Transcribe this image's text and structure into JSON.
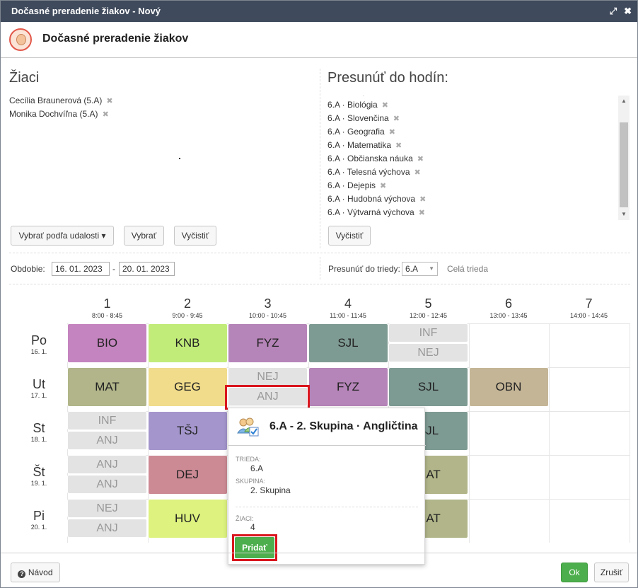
{
  "window": {
    "title": "Dočasné preradenie žiakov - Nový",
    "maximize_icon": "maximize-icon",
    "close_icon": "close-icon"
  },
  "header": {
    "title": "Dočasné preradenie žiakov"
  },
  "left": {
    "title": "Žiaci",
    "students": [
      "Cecília Braunerová (5.A)",
      "Monika Dochvíľna (5.A)"
    ],
    "buttons": {
      "by_event": "Vybrať podľa udalosti ▾",
      "select": "Vybrať",
      "clear": "Vyčistiť"
    }
  },
  "right": {
    "title": "Presunúť do hodín:",
    "lessons": [
      "6.A · Biológia",
      "6.A · Slovenčina",
      "6.A · Geografia",
      "6.A · Matematika",
      "6.A · Občianska náuka",
      "6.A · Telesná výchova",
      "6.A · Dejepis",
      "6.A · Hudobná výchova",
      "6.A · Výtvarná výchova"
    ],
    "clear": "Vyčistiť"
  },
  "filters": {
    "period_label": "Obdobie:",
    "date_from": "16. 01. 2023",
    "date_sep": "-",
    "date_to": "20. 01. 2023",
    "move_class_label": "Presunúť do triedy:",
    "class_value": "6.A",
    "whole_class": "Celá trieda"
  },
  "timetable": {
    "periods": [
      {
        "num": "1",
        "time": "8:00 - 8:45"
      },
      {
        "num": "2",
        "time": "9:00 - 9:45"
      },
      {
        "num": "3",
        "time": "10:00 - 10:45"
      },
      {
        "num": "4",
        "time": "11:00 - 11:45"
      },
      {
        "num": "5",
        "time": "12:00 - 12:45"
      },
      {
        "num": "6",
        "time": "13:00 - 13:45"
      },
      {
        "num": "7",
        "time": "14:00 - 14:45"
      }
    ],
    "days": [
      {
        "day": "Po",
        "date": "16. 1."
      },
      {
        "day": "Ut",
        "date": "17. 1."
      },
      {
        "day": "St",
        "date": "18. 1."
      },
      {
        "day": "Št",
        "date": "19. 1."
      },
      {
        "day": "Pi",
        "date": "20. 1."
      }
    ],
    "colors": {
      "BIO": "#c484bf",
      "KNB": "#c2ec7a",
      "FYZ": "#b584b8",
      "SJL": "#7e9b93",
      "MAT": "#b1b589",
      "GEG": "#f0dc8b",
      "OBN": "#c4b596",
      "TSJ": "#a496cc",
      "DEJ": "#cc8a95",
      "HUV": "#ddf27f",
      "inactive": "#e3e3e3"
    },
    "lessons": [
      {
        "d": 0,
        "p": 0,
        "label": "BIO"
      },
      {
        "d": 0,
        "p": 1,
        "label": "KNB"
      },
      {
        "d": 0,
        "p": 2,
        "label": "FYZ"
      },
      {
        "d": 0,
        "p": 3,
        "label": "SJL"
      },
      {
        "d": 0,
        "p": 4,
        "half": "top",
        "label": "INF"
      },
      {
        "d": 0,
        "p": 4,
        "half": "bottom",
        "label": "NEJ"
      },
      {
        "d": 1,
        "p": 0,
        "label": "MAT"
      },
      {
        "d": 1,
        "p": 1,
        "label": "GEG"
      },
      {
        "d": 1,
        "p": 2,
        "half": "top",
        "label": "NEJ"
      },
      {
        "d": 1,
        "p": 2,
        "half": "bottom",
        "label": "ANJ"
      },
      {
        "d": 1,
        "p": 3,
        "label": "FYZ"
      },
      {
        "d": 1,
        "p": 4,
        "label": "SJL"
      },
      {
        "d": 1,
        "p": 5,
        "label": "OBN"
      },
      {
        "d": 2,
        "p": 0,
        "half": "top",
        "label": "INF"
      },
      {
        "d": 2,
        "p": 0,
        "half": "bottom",
        "label": "ANJ"
      },
      {
        "d": 2,
        "p": 1,
        "label": "TŠJ"
      },
      {
        "d": 2,
        "p": 4,
        "label": "SJL"
      },
      {
        "d": 3,
        "p": 0,
        "half": "top",
        "label": "ANJ"
      },
      {
        "d": 3,
        "p": 0,
        "half": "bottom",
        "label": "ANJ"
      },
      {
        "d": 3,
        "p": 1,
        "label": "DEJ"
      },
      {
        "d": 3,
        "p": 4,
        "label": "MAT"
      },
      {
        "d": 4,
        "p": 0,
        "half": "top",
        "label": "NEJ"
      },
      {
        "d": 4,
        "p": 0,
        "half": "bottom",
        "label": "ANJ"
      },
      {
        "d": 4,
        "p": 1,
        "label": "HUV"
      },
      {
        "d": 4,
        "p": 4,
        "label": "MAT"
      }
    ]
  },
  "popup": {
    "title": "6.A - 2. Skupina · Angličtina",
    "trieda_label": "TRIEDA:",
    "trieda_value": "6.A",
    "skupina_label": "SKUPINA:",
    "skupina_value": "2. Skupina",
    "ziaci_label": "ŽIACI:",
    "ziaci_value": "4",
    "add_button": "Pridať"
  },
  "footer": {
    "help": "Návod",
    "ok": "Ok",
    "cancel": "Zrušiť"
  }
}
